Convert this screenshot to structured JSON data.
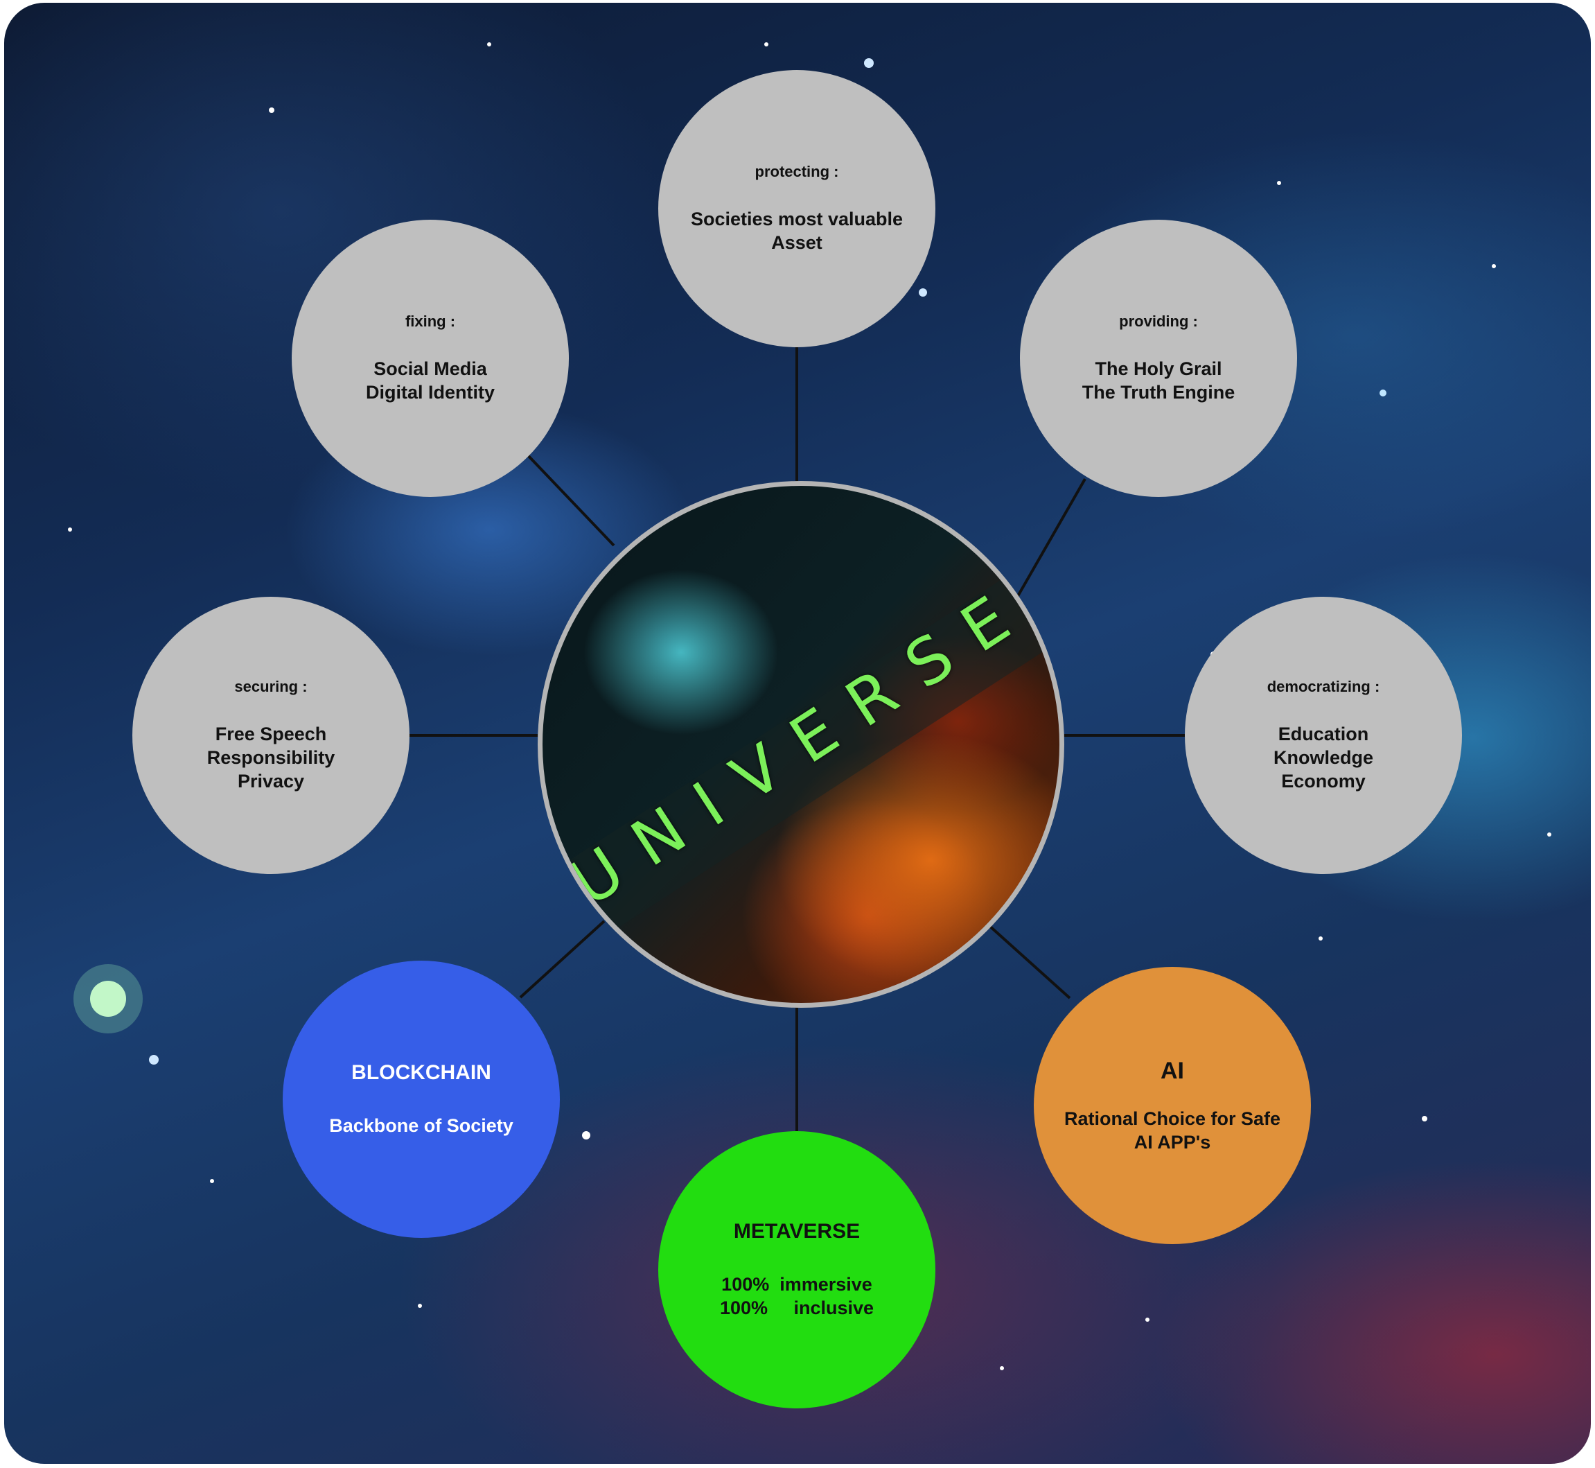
{
  "center": {
    "title": "UNIVERSE"
  },
  "nodes": {
    "protecting": {
      "verb": "protecting :",
      "lines": [
        "Societies most valuable",
        "Asset"
      ]
    },
    "fixing": {
      "verb": "fixing :",
      "lines": [
        "Social Media",
        "Digital Identity"
      ]
    },
    "providing": {
      "verb": "providing :",
      "lines": [
        "The Holy Grail",
        "The Truth Engine"
      ]
    },
    "securing": {
      "verb": "securing :",
      "lines": [
        "Free Speech",
        "Responsibility",
        "Privacy"
      ]
    },
    "democratizing": {
      "verb": "democratizing :",
      "lines": [
        "Education",
        "Knowledge",
        "Economy"
      ]
    },
    "blockchain": {
      "head": "BLOCKCHAIN",
      "lines": [
        "Backbone of Society"
      ],
      "color": "#365ee8"
    },
    "ai": {
      "head": "AI",
      "lines": [
        "Rational Choice for Safe",
        "AI APP's"
      ],
      "color": "#e0913a"
    },
    "metaverse": {
      "head": "METAVERSE",
      "lines": [
        "100%  immersive",
        "100%     inclusive"
      ],
      "color": "#22dd10"
    }
  },
  "colors": {
    "gray_node": "#bfbfbf",
    "center_title": "#7cf05a",
    "connector": "#111111"
  }
}
